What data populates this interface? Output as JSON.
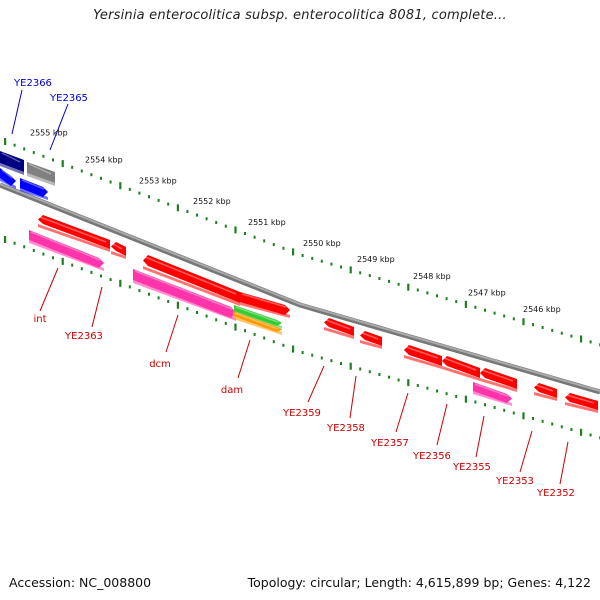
{
  "title": "Yersinia enterocolitica subsp. enterocolitica 8081, complete...",
  "footer": {
    "accession": "Accession: NC_008800",
    "summary": "Topology: circular; Length: 4,615,899 bp; Genes: 4,122"
  },
  "colors": {
    "backbone": "#8a8a8a",
    "tick": "#1d7f1d",
    "label_red": "#cc0000",
    "label_blue": "#0000cc",
    "gene_red": "#ff0000",
    "gene_pink": "#ff33aa",
    "gene_navy": "#000080",
    "gene_blue": "#0000ff",
    "gene_gray": "#808080",
    "gene_green": "#33cc33",
    "gene_orange": "#ff9900"
  },
  "kbp_labels": [
    "2555 kbp",
    "2554 kbp",
    "2553 kbp",
    "2552 kbp",
    "2551 kbp",
    "2550 kbp",
    "2549 kbp",
    "2548 kbp",
    "2547 kbp",
    "2546 kbp"
  ],
  "genes": [
    {
      "id": "navy-gene",
      "color": "gene_navy"
    },
    {
      "id": "gray-gene",
      "color": "gene_gray"
    },
    {
      "id": "blue-gene-1",
      "color": "gene_blue"
    },
    {
      "id": "blue-gene-2",
      "color": "gene_blue"
    },
    {
      "id": "red-gene-1",
      "color": "gene_red"
    },
    {
      "id": "red-gene-2",
      "color": "gene_red"
    },
    {
      "id": "red-gene-3",
      "color": "gene_red"
    },
    {
      "id": "red-gene-4",
      "color": "gene_red"
    },
    {
      "id": "pink-gene-int",
      "color": "gene_pink"
    },
    {
      "id": "pink-gene-dcm",
      "color": "gene_pink"
    },
    {
      "id": "green-gene-dam",
      "color": "gene_green"
    },
    {
      "id": "orange-gene-dam",
      "color": "gene_orange"
    },
    {
      "id": "red-gene-5",
      "color": "gene_red"
    },
    {
      "id": "red-gene-6",
      "color": "gene_red"
    },
    {
      "id": "red-gene-7",
      "color": "gene_red"
    },
    {
      "id": "red-gene-8",
      "color": "gene_red"
    },
    {
      "id": "red-gene-9",
      "color": "gene_red"
    },
    {
      "id": "pink-gene-2",
      "color": "gene_pink"
    },
    {
      "id": "red-gene-10",
      "color": "gene_red"
    },
    {
      "id": "red-gene-11",
      "color": "gene_red"
    }
  ],
  "gene_labels": [
    {
      "text": "YE2366",
      "color": "label_blue"
    },
    {
      "text": "YE2365",
      "color": "label_blue"
    },
    {
      "text": "int",
      "color": "label_red"
    },
    {
      "text": "YE2363",
      "color": "label_red"
    },
    {
      "text": "dcm",
      "color": "label_red"
    },
    {
      "text": "dam",
      "color": "label_red"
    },
    {
      "text": "YE2359",
      "color": "label_red"
    },
    {
      "text": "YE2358",
      "color": "label_red"
    },
    {
      "text": "YE2357",
      "color": "label_red"
    },
    {
      "text": "YE2356",
      "color": "label_red"
    },
    {
      "text": "YE2355",
      "color": "label_red"
    },
    {
      "text": "YE2353",
      "color": "label_red"
    },
    {
      "text": "YE2352",
      "color": "label_red"
    }
  ]
}
